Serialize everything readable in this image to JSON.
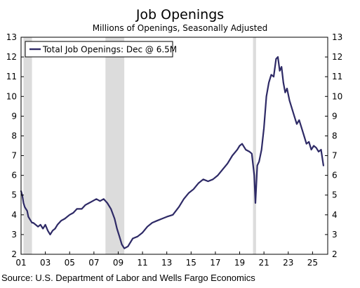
{
  "chart_data": {
    "type": "line",
    "title": "Job Openings",
    "subtitle": "Millions of Openings, Seasonally Adjusted",
    "source": "Source: U.S. Department of Labor and Wells Fargo Economics",
    "ylim": [
      2,
      13
    ],
    "xlim": [
      2001.0,
      2026.25
    ],
    "y_ticks": [
      2,
      3,
      4,
      5,
      6,
      7,
      8,
      9,
      10,
      11,
      12,
      13
    ],
    "x_ticks": [
      {
        "value": 2001,
        "label": "01"
      },
      {
        "value": 2003,
        "label": "03"
      },
      {
        "value": 2005,
        "label": "05"
      },
      {
        "value": 2007,
        "label": "07"
      },
      {
        "value": 2009,
        "label": "09"
      },
      {
        "value": 2011,
        "label": "11"
      },
      {
        "value": 2013,
        "label": "13"
      },
      {
        "value": 2015,
        "label": "15"
      },
      {
        "value": 2017,
        "label": "17"
      },
      {
        "value": 2019,
        "label": "19"
      },
      {
        "value": 2021,
        "label": "21"
      },
      {
        "value": 2023,
        "label": "23"
      },
      {
        "value": 2025,
        "label": "25"
      }
    ],
    "grid": false,
    "legend": {
      "position": "top-left",
      "label": "Total Job Openings: Dec @ 6.5M"
    },
    "recessions": [
      [
        2001.2,
        2001.9
      ],
      [
        2007.95,
        2009.5
      ],
      [
        2020.1,
        2020.35
      ]
    ],
    "recession_color": "#dcdcdc",
    "series": [
      {
        "name": "Total Job Openings: Dec @ 6.5M",
        "color": "#2e2a66",
        "x": [
          2001.0,
          2001.1,
          2001.2,
          2001.3,
          2001.4,
          2001.5,
          2001.6,
          2001.7,
          2001.8,
          2001.9,
          2002.0,
          2002.2,
          2002.4,
          2002.6,
          2002.8,
          2003.0,
          2003.2,
          2003.4,
          2003.6,
          2003.8,
          2004.0,
          2004.3,
          2004.6,
          2005.0,
          2005.3,
          2005.6,
          2006.0,
          2006.3,
          2006.6,
          2006.9,
          2007.2,
          2007.5,
          2007.8,
          2008.1,
          2008.4,
          2008.7,
          2008.9,
          2009.1,
          2009.3,
          2009.5,
          2009.8,
          2010.2,
          2010.6,
          2011.0,
          2011.4,
          2011.8,
          2012.2,
          2012.6,
          2013.0,
          2013.5,
          2014.0,
          2014.4,
          2014.8,
          2015.2,
          2015.6,
          2016.0,
          2016.4,
          2016.8,
          2017.2,
          2017.6,
          2018.0,
          2018.4,
          2018.8,
          2019.0,
          2019.2,
          2019.5,
          2019.8,
          2020.0,
          2020.2,
          2020.3,
          2020.45,
          2020.6,
          2020.8,
          2021.0,
          2021.2,
          2021.4,
          2021.6,
          2021.8,
          2022.0,
          2022.15,
          2022.3,
          2022.45,
          2022.6,
          2022.75,
          2022.9,
          2023.1,
          2023.3,
          2023.5,
          2023.7,
          2023.9,
          2024.1,
          2024.3,
          2024.5,
          2024.7,
          2024.9,
          2025.1,
          2025.3,
          2025.5,
          2025.7,
          2025.9
        ],
        "values": [
          5.2,
          5.0,
          4.6,
          4.4,
          4.3,
          4.2,
          3.9,
          3.8,
          3.7,
          3.6,
          3.6,
          3.5,
          3.4,
          3.5,
          3.3,
          3.5,
          3.2,
          3.0,
          3.2,
          3.3,
          3.5,
          3.7,
          3.8,
          4.0,
          4.1,
          4.3,
          4.3,
          4.5,
          4.6,
          4.7,
          4.8,
          4.7,
          4.8,
          4.6,
          4.3,
          3.8,
          3.3,
          2.9,
          2.5,
          2.3,
          2.4,
          2.8,
          2.9,
          3.1,
          3.4,
          3.6,
          3.7,
          3.8,
          3.9,
          4.0,
          4.4,
          4.8,
          5.1,
          5.3,
          5.6,
          5.8,
          5.7,
          5.8,
          6.0,
          6.3,
          6.6,
          7.0,
          7.3,
          7.5,
          7.6,
          7.3,
          7.2,
          7.1,
          6.0,
          4.6,
          6.5,
          6.7,
          7.3,
          8.4,
          10.0,
          10.7,
          11.1,
          11.0,
          11.9,
          12.0,
          11.3,
          11.5,
          10.7,
          10.2,
          10.4,
          9.8,
          9.4,
          9.0,
          8.6,
          8.8,
          8.4,
          8.0,
          7.6,
          7.7,
          7.3,
          7.5,
          7.4,
          7.2,
          7.3,
          6.5
        ]
      }
    ]
  }
}
